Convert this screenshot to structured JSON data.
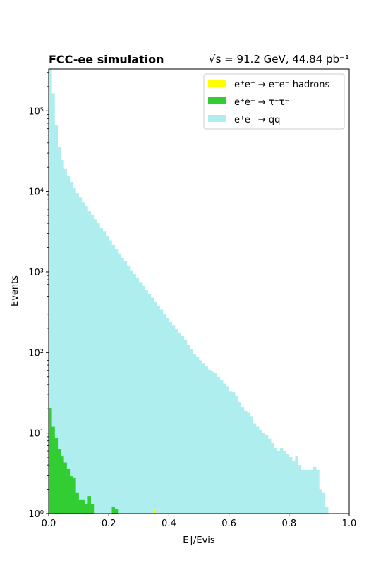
{
  "chart_data": {
    "type": "bar",
    "title_left": "FCC-ee simulation",
    "title_right": "√s = 91.2 GeV, 44.84 pb⁻¹",
    "xlabel": "E∥/Evis",
    "ylabel": "Events",
    "xlim": [
      0,
      1
    ],
    "ylim": [
      1,
      330000
    ],
    "yscale": "log",
    "stacked": true,
    "bin_width": 0.01,
    "xticks": [
      0,
      0.2,
      0.4,
      0.6,
      0.8,
      1
    ],
    "xtick_labels": [
      "0.0",
      "0.2",
      "0.4",
      "0.6",
      "0.8",
      "1.0"
    ],
    "yticks": [
      1,
      10,
      100,
      1000,
      10000,
      100000
    ],
    "ytick_labels": [
      "10⁰",
      "10¹",
      "10²",
      "10³",
      "10⁴",
      "10⁵"
    ],
    "legend_position": "upper right",
    "series": [
      {
        "name": "e⁺e⁻ → e⁺e⁻ hadrons",
        "color": "#ffff00",
        "bins": [
          {
            "x": 0.35,
            "value": 1.15
          }
        ]
      },
      {
        "name": "e⁺e⁻ → τ⁺τ⁻",
        "color": "#32cd32",
        "values": [
          20.5,
          12.0,
          8.8,
          6.3,
          5.2,
          4.3,
          3.6,
          2.9,
          2.8,
          1.8,
          1.5,
          1.5,
          1.3,
          1.65,
          1.3,
          0,
          0,
          0,
          0,
          0,
          0,
          1.2,
          1.15
        ]
      },
      {
        "name": "e⁺e⁻ → qq̄",
        "color": "#afeeee",
        "values": [
          330000,
          165000,
          66000,
          36000,
          24500,
          19000,
          15500,
          13000,
          11000,
          9500,
          8400,
          7300,
          6500,
          5700,
          5100,
          4500,
          4000,
          3500,
          3200,
          2800,
          2450,
          2150,
          1900,
          1700,
          1500,
          1350,
          1200,
          1050,
          940,
          840,
          750,
          670,
          600,
          530,
          480,
          420,
          380,
          340,
          300,
          270,
          240,
          215,
          195,
          175,
          160,
          145,
          125,
          110,
          96,
          88,
          80,
          74,
          67,
          61,
          58,
          55,
          50,
          46,
          41,
          38,
          33,
          32,
          29,
          24,
          21,
          19,
          18,
          16,
          13,
          12,
          11,
          10,
          9.5,
          8.5,
          7.5,
          6.5,
          6.0,
          6.5,
          6.0,
          5.5,
          5.0,
          4.5,
          5.2,
          4.0,
          3.5,
          3.5,
          3.5,
          3.5,
          3.8,
          3.5,
          2.0,
          1.8,
          1.2,
          0,
          0,
          0,
          0,
          0,
          0,
          0
        ]
      }
    ]
  }
}
